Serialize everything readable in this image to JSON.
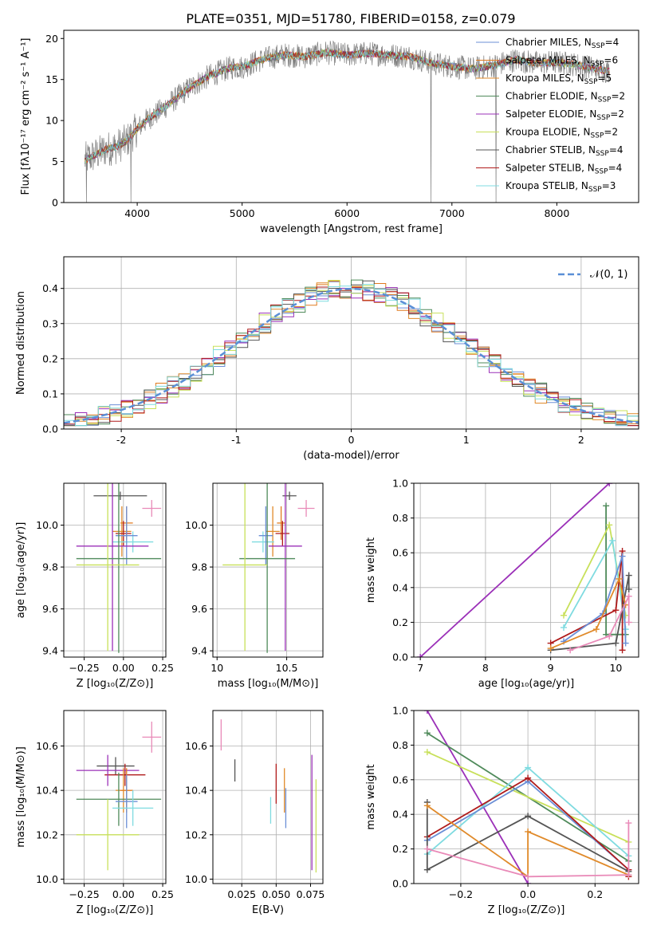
{
  "figure_title": "PLATE=0351, MJD=51780, FIBERID=0158, z=0.079",
  "colors": {
    "Chabrier MILES": "#6b8fd6",
    "Salpeter MILES": "#e07a1f",
    "Kroupa MILES": "#e08a2a",
    "Chabrier ELODIE": "#4f8a5a",
    "Salpeter ELODIE": "#9b30b8",
    "Kroupa ELODIE": "#c8e05a",
    "Chabrier STELIB": "#555555",
    "Salpeter STELIB": "#b01b1b",
    "Kroupa STELIB": "#7fdbe0",
    "extra_pink": "#e98ab8",
    "gaussian": "#5a8fd6",
    "data_spectrum": "#808080"
  },
  "chart_data": [
    {
      "id": "spectrum",
      "type": "line",
      "xlabel": "wavelength [Angstrom, rest frame]",
      "ylabel": "Flux [f$_\\lambda$10$^{-17}$ erg cm$^{-2}$ s$^{-1}$ A$^{-1}$]",
      "ylabel_display": "Flux [fλ10⁻¹⁷ erg cm⁻² s⁻¹ A⁻¹]",
      "xlim": [
        3300,
        8780
      ],
      "ylim": [
        0,
        21
      ],
      "xticks": [
        4000,
        5000,
        6000,
        7000,
        8000
      ],
      "yticks": [
        0,
        5,
        10,
        15,
        20
      ],
      "legend_position": "top-right",
      "legend": [
        {
          "name": "Chabrier MILES, N",
          "sub": "SSP",
          "tail": "=4",
          "color_key": "Chabrier MILES"
        },
        {
          "name": "Salpeter MILES, N",
          "sub": "SSP",
          "tail": "=6",
          "color_key": "Salpeter MILES"
        },
        {
          "name": "Kroupa MILES, N",
          "sub": "SSP",
          "tail": "=5",
          "color_key": "Kroupa MILES"
        },
        {
          "name": "Chabrier ELODIE, N",
          "sub": "SSP",
          "tail": "=2",
          "color_key": "Chabrier ELODIE"
        },
        {
          "name": "Salpeter ELODIE, N",
          "sub": "SSP",
          "tail": "=2",
          "color_key": "Salpeter ELODIE"
        },
        {
          "name": "Kroupa ELODIE, N",
          "sub": "SSP",
          "tail": "=2",
          "color_key": "Kroupa ELODIE"
        },
        {
          "name": "Chabrier STELIB, N",
          "sub": "SSP",
          "tail": "=4",
          "color_key": "Chabrier STELIB"
        },
        {
          "name": "Salpeter STELIB, N",
          "sub": "SSP",
          "tail": "=4",
          "color_key": "Salpeter STELIB"
        },
        {
          "name": "Kroupa STELIB, N",
          "sub": "SSP",
          "tail": "=3",
          "color_key": "Kroupa STELIB"
        }
      ],
      "continuum_x": [
        3500,
        3600,
        3700,
        3800,
        3900,
        4000,
        4100,
        4200,
        4300,
        4400,
        4500,
        4600,
        4700,
        4800,
        4900,
        5000,
        5200,
        5400,
        5600,
        5800,
        6000,
        6200,
        6400,
        6600,
        6800,
        7000,
        7200,
        7400,
        7600,
        7800,
        8000,
        8200,
        8400,
        8500
      ],
      "continuum_y": [
        5.2,
        5.8,
        6.5,
        6.8,
        7.5,
        9.0,
        10.2,
        11.0,
        12.0,
        13.0,
        14.0,
        14.8,
        15.5,
        16.0,
        16.5,
        16.5,
        17.5,
        18.0,
        17.8,
        18.3,
        18.0,
        18.2,
        18.0,
        17.8,
        17.0,
        16.6,
        16.3,
        16.7,
        17.4,
        17.0,
        17.1,
        16.8,
        16.2,
        16.0
      ],
      "gaps": [
        [
          3515,
          0
        ],
        [
          3940,
          0
        ],
        [
          6800,
          0
        ],
        [
          7420,
          0
        ]
      ],
      "noise_amplitude": 1.5
    },
    {
      "id": "residuals",
      "type": "histogram",
      "xlabel": "(data-model)/error",
      "ylabel": "Normed distribution",
      "xlim": [
        -2.5,
        2.5
      ],
      "ylim": [
        0,
        0.49
      ],
      "xticks": [
        -2,
        -1,
        0,
        1,
        2
      ],
      "yticks": [
        0.0,
        0.1,
        0.2,
        0.3,
        0.4
      ],
      "legend_position": "top-right",
      "legend": [
        "𝒩(0, 1)"
      ],
      "bin_width": 0.1,
      "bin_start": -2.5,
      "series_offsets": [
        0.0,
        0.02,
        -0.02,
        0.03,
        -0.015,
        0.04,
        -0.03,
        0.025,
        -0.01
      ]
    },
    {
      "id": "age_vs_Z",
      "type": "errorbar",
      "xlabel": "Z [log₁₀(Z/Z⊙)]",
      "ylabel": "age  [log₁₀(age/yr)]",
      "xlim": [
        -0.38,
        0.27
      ],
      "ylim": [
        9.37,
        10.2
      ],
      "xticks": [
        -0.25,
        0.0,
        0.25
      ],
      "xticklabels": [
        "−0.25",
        "0.00",
        "0.25"
      ],
      "yticks": [
        9.4,
        9.6,
        9.8,
        10.0
      ],
      "points": [
        {
          "c": "Chabrier STELIB",
          "x": -0.02,
          "xe": 0.17,
          "y": 10.14,
          "ye": 0.02
        },
        {
          "c": "extra_pink",
          "x": 0.18,
          "xe": 0.06,
          "y": 10.08,
          "ye": 0.04
        },
        {
          "c": "Kroupa MILES",
          "x": -0.01,
          "xe": 0.06,
          "y": 9.97,
          "ye": 0.12
        },
        {
          "c": "Salpeter MILES",
          "x": 0.02,
          "xe": 0.04,
          "y": 10.01,
          "ye": 0.08
        },
        {
          "c": "Salpeter STELIB",
          "x": 0.0,
          "xe": 0.05,
          "y": 9.96,
          "ye": 0.06
        },
        {
          "c": "Kroupa STELIB",
          "x": 0.06,
          "xe": 0.13,
          "y": 9.92,
          "ye": 0.05
        },
        {
          "c": "Chabrier MILES",
          "x": 0.02,
          "xe": 0.07,
          "y": 9.95,
          "ye": 0.14
        },
        {
          "c": "Salpeter ELODIE",
          "x": -0.07,
          "xe": 0.23,
          "y": 9.9,
          "ye": 0.5
        },
        {
          "c": "Chabrier ELODIE",
          "x": -0.03,
          "xe": 0.27,
          "y": 9.84,
          "ye": 0.45
        },
        {
          "c": "Kroupa ELODIE",
          "x": -0.1,
          "xe": 0.2,
          "y": 9.81,
          "ye": 0.41
        }
      ]
    },
    {
      "id": "age_vs_mass",
      "type": "errorbar",
      "xlabel": "mass [log₁₀(M/M⊙)]",
      "ylabel": "",
      "xlim": [
        9.97,
        10.76
      ],
      "ylim": [
        9.37,
        10.2
      ],
      "xticks": [
        10.0,
        10.5
      ],
      "yticks": [
        9.4,
        9.6,
        9.8,
        10.0
      ],
      "points": [
        {
          "c": "Chabrier STELIB",
          "x": 10.52,
          "xe": 0.05,
          "y": 10.14,
          "ye": 0.02
        },
        {
          "c": "extra_pink",
          "x": 10.64,
          "xe": 0.06,
          "y": 10.08,
          "ye": 0.04
        },
        {
          "c": "Kroupa MILES",
          "x": 10.4,
          "xe": 0.05,
          "y": 9.97,
          "ye": 0.12
        },
        {
          "c": "Salpeter MILES",
          "x": 10.46,
          "xe": 0.03,
          "y": 10.01,
          "ye": 0.08
        },
        {
          "c": "Salpeter STELIB",
          "x": 10.47,
          "xe": 0.05,
          "y": 9.96,
          "ye": 0.06
        },
        {
          "c": "Kroupa STELIB",
          "x": 10.33,
          "xe": 0.08,
          "y": 9.92,
          "ye": 0.05
        },
        {
          "c": "Chabrier MILES",
          "x": 10.35,
          "xe": 0.05,
          "y": 9.95,
          "ye": 0.14
        },
        {
          "c": "Salpeter ELODIE",
          "x": 10.49,
          "xe": 0.12,
          "y": 9.9,
          "ye": 0.5
        },
        {
          "c": "Chabrier ELODIE",
          "x": 10.36,
          "xe": 0.2,
          "y": 9.84,
          "ye": 0.45
        },
        {
          "c": "Kroupa ELODIE",
          "x": 10.2,
          "xe": 0.16,
          "y": 9.81,
          "ye": 0.41
        }
      ]
    },
    {
      "id": "massweight_vs_age",
      "type": "line",
      "xlabel": "age  [log₁₀(age/yr)]",
      "ylabel": "mass weight",
      "xlim": [
        6.9,
        10.35
      ],
      "ylim": [
        0,
        1.0
      ],
      "xticks": [
        7,
        8,
        9,
        10
      ],
      "yticks": [
        0.0,
        0.2,
        0.4,
        0.6,
        0.8,
        1.0
      ],
      "series": [
        {
          "c": "Salpeter ELODIE",
          "x": [
            7.0,
            9.9
          ],
          "y": [
            0.0,
            1.0
          ]
        },
        {
          "c": "Chabrier ELODIE",
          "x": [
            9.85,
            9.85,
            10.15
          ],
          "y": [
            0.87,
            0.13,
            0.13
          ]
        },
        {
          "c": "Kroupa ELODIE",
          "x": [
            9.2,
            9.9,
            10.15
          ],
          "y": [
            0.24,
            0.76,
            0.24
          ]
        },
        {
          "c": "Kroupa STELIB",
          "x": [
            9.2,
            9.95,
            10.15
          ],
          "y": [
            0.17,
            0.67,
            0.16
          ]
        },
        {
          "c": "Salpeter STELIB",
          "x": [
            9.0,
            10.0,
            10.1,
            10.1
          ],
          "y": [
            0.08,
            0.27,
            0.61,
            0.04
          ]
        },
        {
          "c": "Chabrier MILES",
          "x": [
            9.2,
            9.8,
            10.1,
            10.15
          ],
          "y": [
            0.09,
            0.25,
            0.58,
            0.08
          ]
        },
        {
          "c": "Chabrier STELIB",
          "x": [
            9.0,
            10.0,
            10.2,
            10.2
          ],
          "y": [
            0.04,
            0.08,
            0.47,
            0.39
          ]
        },
        {
          "c": "Kroupa MILES",
          "x": [
            9.0,
            9.7,
            10.05,
            10.15
          ],
          "y": [
            0.05,
            0.16,
            0.45,
            0.3
          ]
        },
        {
          "c": "extra_pink",
          "x": [
            9.3,
            9.9,
            10.2,
            10.2
          ],
          "y": [
            0.04,
            0.12,
            0.35,
            0.2
          ]
        }
      ]
    },
    {
      "id": "mass_vs_Z",
      "type": "errorbar",
      "xlabel": "Z [log₁₀(Z/Z⊙)]",
      "ylabel": "mass [log₁₀(M/M⊙)]",
      "xlim": [
        -0.38,
        0.27
      ],
      "ylim": [
        9.98,
        10.76
      ],
      "xticks": [
        -0.25,
        0.0,
        0.25
      ],
      "xticklabels": [
        "−0.25",
        "0.00",
        "0.25"
      ],
      "yticks": [
        10.0,
        10.2,
        10.4,
        10.6
      ],
      "points": [
        {
          "c": "extra_pink",
          "x": 0.18,
          "xe": 0.06,
          "y": 10.64,
          "ye": 0.07
        },
        {
          "c": "Chabrier STELIB",
          "x": -0.05,
          "xe": 0.12,
          "y": 10.51,
          "ye": 0.04
        },
        {
          "c": "Salpeter STELIB",
          "x": 0.01,
          "xe": 0.13,
          "y": 10.47,
          "ye": 0.05
        },
        {
          "c": "Salpeter ELODIE",
          "x": -0.1,
          "xe": 0.2,
          "y": 10.49,
          "ye": 0.07
        },
        {
          "c": "Kroupa MILES",
          "x": 0.0,
          "xe": 0.05,
          "y": 10.4,
          "ye": 0.1
        },
        {
          "c": "Salpeter MILES",
          "x": 0.02,
          "xe": 0.04,
          "y": 10.4,
          "ye": 0.1
        },
        {
          "c": "Chabrier ELODIE",
          "x": -0.03,
          "xe": 0.27,
          "y": 10.36,
          "ye": 0.12
        },
        {
          "c": "Chabrier MILES",
          "x": 0.02,
          "xe": 0.07,
          "y": 10.35,
          "ye": 0.12
        },
        {
          "c": "Kroupa STELIB",
          "x": 0.06,
          "xe": 0.13,
          "y": 10.32,
          "ye": 0.08
        },
        {
          "c": "Kroupa ELODIE",
          "x": -0.1,
          "xe": 0.2,
          "y": 10.2,
          "ye": 0.16
        }
      ]
    },
    {
      "id": "mass_vs_EBV",
      "type": "errorbar",
      "xlabel": "E(B-V)",
      "ylabel": "",
      "xlim": [
        0.004,
        0.084
      ],
      "ylim": [
        9.98,
        10.76
      ],
      "xticks": [
        0.025,
        0.05,
        0.075
      ],
      "xticklabels": [
        "0.025",
        "0.050",
        "0.075"
      ],
      "yticks": [
        10.0,
        10.2,
        10.4,
        10.6
      ],
      "points": [
        {
          "c": "extra_pink",
          "x": 0.01,
          "xe": 0,
          "y": 10.65,
          "ye": 0.07
        },
        {
          "c": "Chabrier STELIB",
          "x": 0.02,
          "xe": 0,
          "y": 10.49,
          "ye": 0.05
        },
        {
          "c": "Salpeter STELIB",
          "x": 0.05,
          "xe": 0,
          "y": 10.43,
          "ye": 0.09
        },
        {
          "c": "Kroupa MILES",
          "x": 0.056,
          "xe": 0,
          "y": 10.4,
          "ye": 0.1
        },
        {
          "c": "Kroupa STELIB",
          "x": 0.046,
          "xe": 0,
          "y": 10.31,
          "ye": 0.06
        },
        {
          "c": "Chabrier MILES",
          "x": 0.057,
          "xe": 0,
          "y": 10.32,
          "ye": 0.09
        },
        {
          "c": "Salpeter ELODIE",
          "x": 0.076,
          "xe": 0,
          "y": 10.3,
          "ye": 0.26
        },
        {
          "c": "Kroupa ELODIE",
          "x": 0.079,
          "xe": 0,
          "y": 10.24,
          "ye": 0.21
        }
      ]
    },
    {
      "id": "massweight_vs_Z",
      "type": "line",
      "xlabel": "Z [log₁₀(Z/Z⊙)]",
      "ylabel": "mass weight",
      "xlim": [
        -0.34,
        0.33
      ],
      "ylim": [
        0,
        1.0
      ],
      "xticks": [
        -0.2,
        0.0,
        0.2
      ],
      "xticklabels": [
        "−0.2",
        "0.0",
        "0.2"
      ],
      "yticks": [
        0.0,
        0.2,
        0.4,
        0.6,
        0.8,
        1.0
      ],
      "series": [
        {
          "c": "Salpeter ELODIE",
          "x": [
            -0.3,
            0.0
          ],
          "y": [
            1.0,
            0.0
          ]
        },
        {
          "c": "Chabrier ELODIE",
          "x": [
            -0.3,
            0.3
          ],
          "y": [
            0.87,
            0.13
          ]
        },
        {
          "c": "Kroupa ELODIE",
          "x": [
            -0.3,
            0.3
          ],
          "y": [
            0.76,
            0.24
          ]
        },
        {
          "c": "Kroupa STELIB",
          "x": [
            -0.3,
            0.0,
            0.3
          ],
          "y": [
            0.17,
            0.67,
            0.16
          ]
        },
        {
          "c": "Chabrier MILES",
          "x": [
            -0.3,
            0.0,
            0.3
          ],
          "y": [
            0.25,
            0.59,
            0.08
          ]
        },
        {
          "c": "Salpeter STELIB",
          "x": [
            -0.3,
            0.0,
            0.3,
            0.3
          ],
          "y": [
            0.27,
            0.61,
            0.08,
            0.04
          ]
        },
        {
          "c": "Chabrier STELIB",
          "x": [
            -0.3,
            -0.3,
            0.0,
            0.3
          ],
          "y": [
            0.47,
            0.08,
            0.39,
            0.07
          ]
        },
        {
          "c": "Kroupa MILES",
          "x": [
            -0.3,
            0.0,
            0.0,
            0.3
          ],
          "y": [
            0.45,
            0.04,
            0.3,
            0.05
          ]
        },
        {
          "c": "extra_pink",
          "x": [
            -0.3,
            0.0,
            0.3,
            0.3
          ],
          "y": [
            0.2,
            0.04,
            0.05,
            0.35
          ]
        }
      ]
    }
  ]
}
